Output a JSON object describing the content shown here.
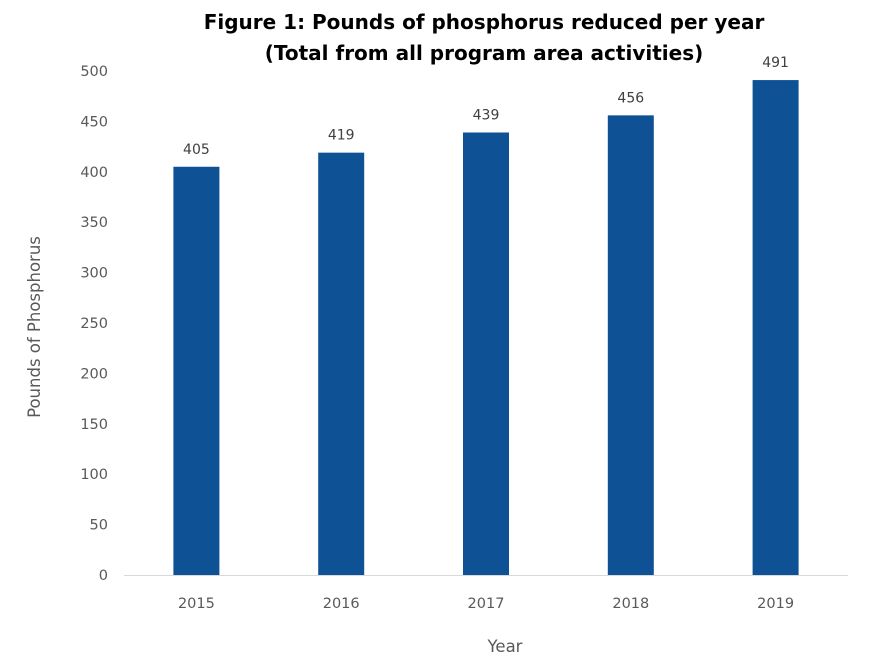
{
  "chart_data": {
    "type": "bar",
    "title": "Figure 1: Pounds of phosphorus reduced per year",
    "subtitle": "(Total from all program area activities)",
    "xlabel": "Year",
    "ylabel": "Pounds of Phosphorus",
    "categories": [
      "2015",
      "2016",
      "2017",
      "2018",
      "2019"
    ],
    "values": [
      405,
      419,
      439,
      456,
      491
    ],
    "data_labels": [
      "405",
      "419",
      "439",
      "456",
      "491"
    ],
    "ylim": [
      0,
      500
    ],
    "yticks": [
      0,
      50,
      100,
      150,
      200,
      250,
      300,
      350,
      400,
      450,
      500
    ],
    "grid": false,
    "legend": "none",
    "colors": {
      "bar": "#0e5295",
      "axis": "#d9d9d9"
    }
  }
}
